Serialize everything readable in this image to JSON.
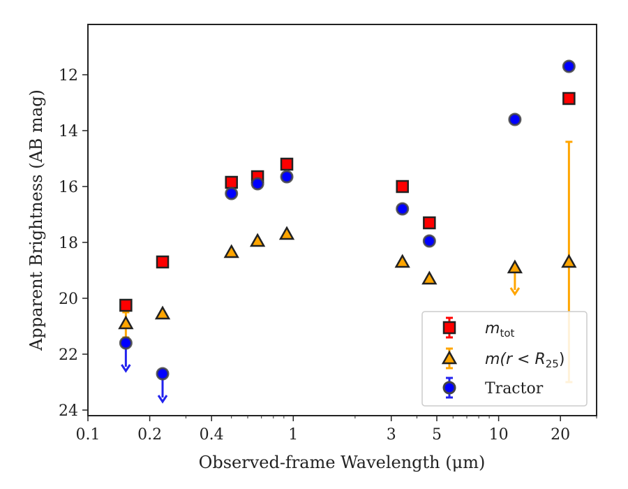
{
  "chart_data": {
    "type": "scatter",
    "xlabel": "Observed-frame Wavelength (μm)",
    "ylabel": "Apparent Brightness (AB mag)",
    "xscale": "log",
    "xlim": [
      0.1,
      30
    ],
    "ylim": [
      24.2,
      10.2
    ],
    "y_inverted": true,
    "xticks": [
      {
        "value": 0.1,
        "label": "0.1"
      },
      {
        "value": 0.2,
        "label": "0.2"
      },
      {
        "value": 0.4,
        "label": "0.4"
      },
      {
        "value": 1,
        "label": "1"
      },
      {
        "value": 3,
        "label": "3"
      },
      {
        "value": 5,
        "label": "5"
      },
      {
        "value": 10,
        "label": "10"
      },
      {
        "value": 20,
        "label": "20"
      }
    ],
    "yticks": [
      {
        "value": 12,
        "label": "12"
      },
      {
        "value": 14,
        "label": "14"
      },
      {
        "value": 16,
        "label": "16"
      },
      {
        "value": 18,
        "label": "18"
      },
      {
        "value": 20,
        "label": "20"
      },
      {
        "value": 22,
        "label": "22"
      },
      {
        "value": 24,
        "label": "24"
      }
    ],
    "grid": false,
    "legend_position": "lower-right",
    "series": [
      {
        "name": "m_tot",
        "label_main": "m",
        "label_sub": "tot",
        "marker": "square",
        "color": "#ff0000",
        "edge": "#222222",
        "errcolor": "#ff0000",
        "points": [
          {
            "x": 0.153,
            "y": 20.25
          },
          {
            "x": 0.231,
            "y": 18.7
          },
          {
            "x": 0.5,
            "y": 15.85
          },
          {
            "x": 0.67,
            "y": 15.65
          },
          {
            "x": 0.93,
            "y": 15.2
          },
          {
            "x": 3.4,
            "y": 16.0
          },
          {
            "x": 4.6,
            "y": 17.3
          },
          {
            "x": 22.0,
            "y": 12.85
          }
        ]
      },
      {
        "name": "m(r < R_25)",
        "label_main": "m(r < R",
        "label_sub": "25",
        "label_end": ")",
        "marker": "triangle",
        "color": "#ffa500",
        "edge": "#222222",
        "errcolor": "#ffa500",
        "points": [
          {
            "x": 0.153,
            "y": 20.9,
            "yerr_low": 20.5,
            "yerr_high": 21.4
          },
          {
            "x": 0.231,
            "y": 20.55
          },
          {
            "x": 0.5,
            "y": 18.35
          },
          {
            "x": 0.67,
            "y": 17.95
          },
          {
            "x": 0.93,
            "y": 17.7
          },
          {
            "x": 3.4,
            "y": 18.7
          },
          {
            "x": 4.6,
            "y": 19.3
          },
          {
            "x": 12.0,
            "y": 18.9,
            "upper_limit_to": 19.85
          },
          {
            "x": 22.0,
            "y": 18.7,
            "yerr_low": 14.4,
            "yerr_high": 23.0
          }
        ]
      },
      {
        "name": "Tractor",
        "label_main": "Tractor",
        "marker": "circle",
        "color": "#0000ff",
        "edge": "#444444",
        "errcolor": "#2222ee",
        "points": [
          {
            "x": 0.153,
            "y": 21.6,
            "upper_limit_to": 22.6
          },
          {
            "x": 0.231,
            "y": 22.7,
            "upper_limit_to": 23.7
          },
          {
            "x": 0.5,
            "y": 16.25
          },
          {
            "x": 0.67,
            "y": 15.9
          },
          {
            "x": 0.93,
            "y": 15.65
          },
          {
            "x": 3.4,
            "y": 16.8
          },
          {
            "x": 4.6,
            "y": 17.95
          },
          {
            "x": 12.0,
            "y": 13.6
          },
          {
            "x": 22.0,
            "y": 11.7
          }
        ]
      }
    ]
  }
}
